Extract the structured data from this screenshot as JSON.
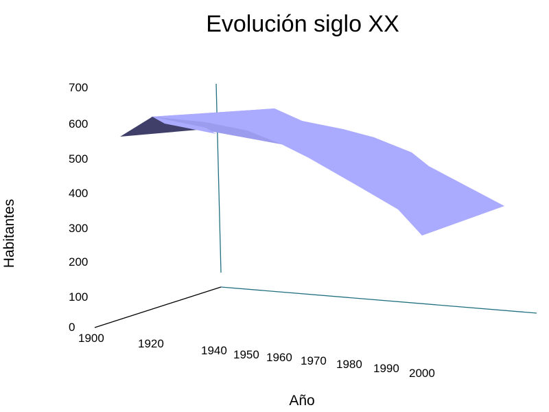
{
  "chart_data": {
    "type": "area",
    "subtype": "3d-surface",
    "title": "Evolución siglo XX",
    "xlabel": "Año",
    "ylabel": "Habitantes",
    "categories": [
      "1900",
      "1920",
      "1940",
      "1950",
      "1960",
      "1970",
      "1980",
      "1990",
      "2000"
    ],
    "yticks": [
      "0",
      "100",
      "200",
      "300",
      "400",
      "500",
      "600",
      "700"
    ],
    "ylim": [
      0,
      700
    ],
    "series": [
      {
        "values": [
          560,
          620,
          640,
          650,
          580,
          510,
          420,
          330,
          290
        ]
      }
    ],
    "grid": false,
    "legend": "none",
    "colors": {
      "surface_front": "#aaaaff",
      "surface_top": "#9c9cee",
      "surface_dark": "#3f3f6a",
      "axis_main": "#000000",
      "axis_depth": "#1f6f7f"
    }
  }
}
